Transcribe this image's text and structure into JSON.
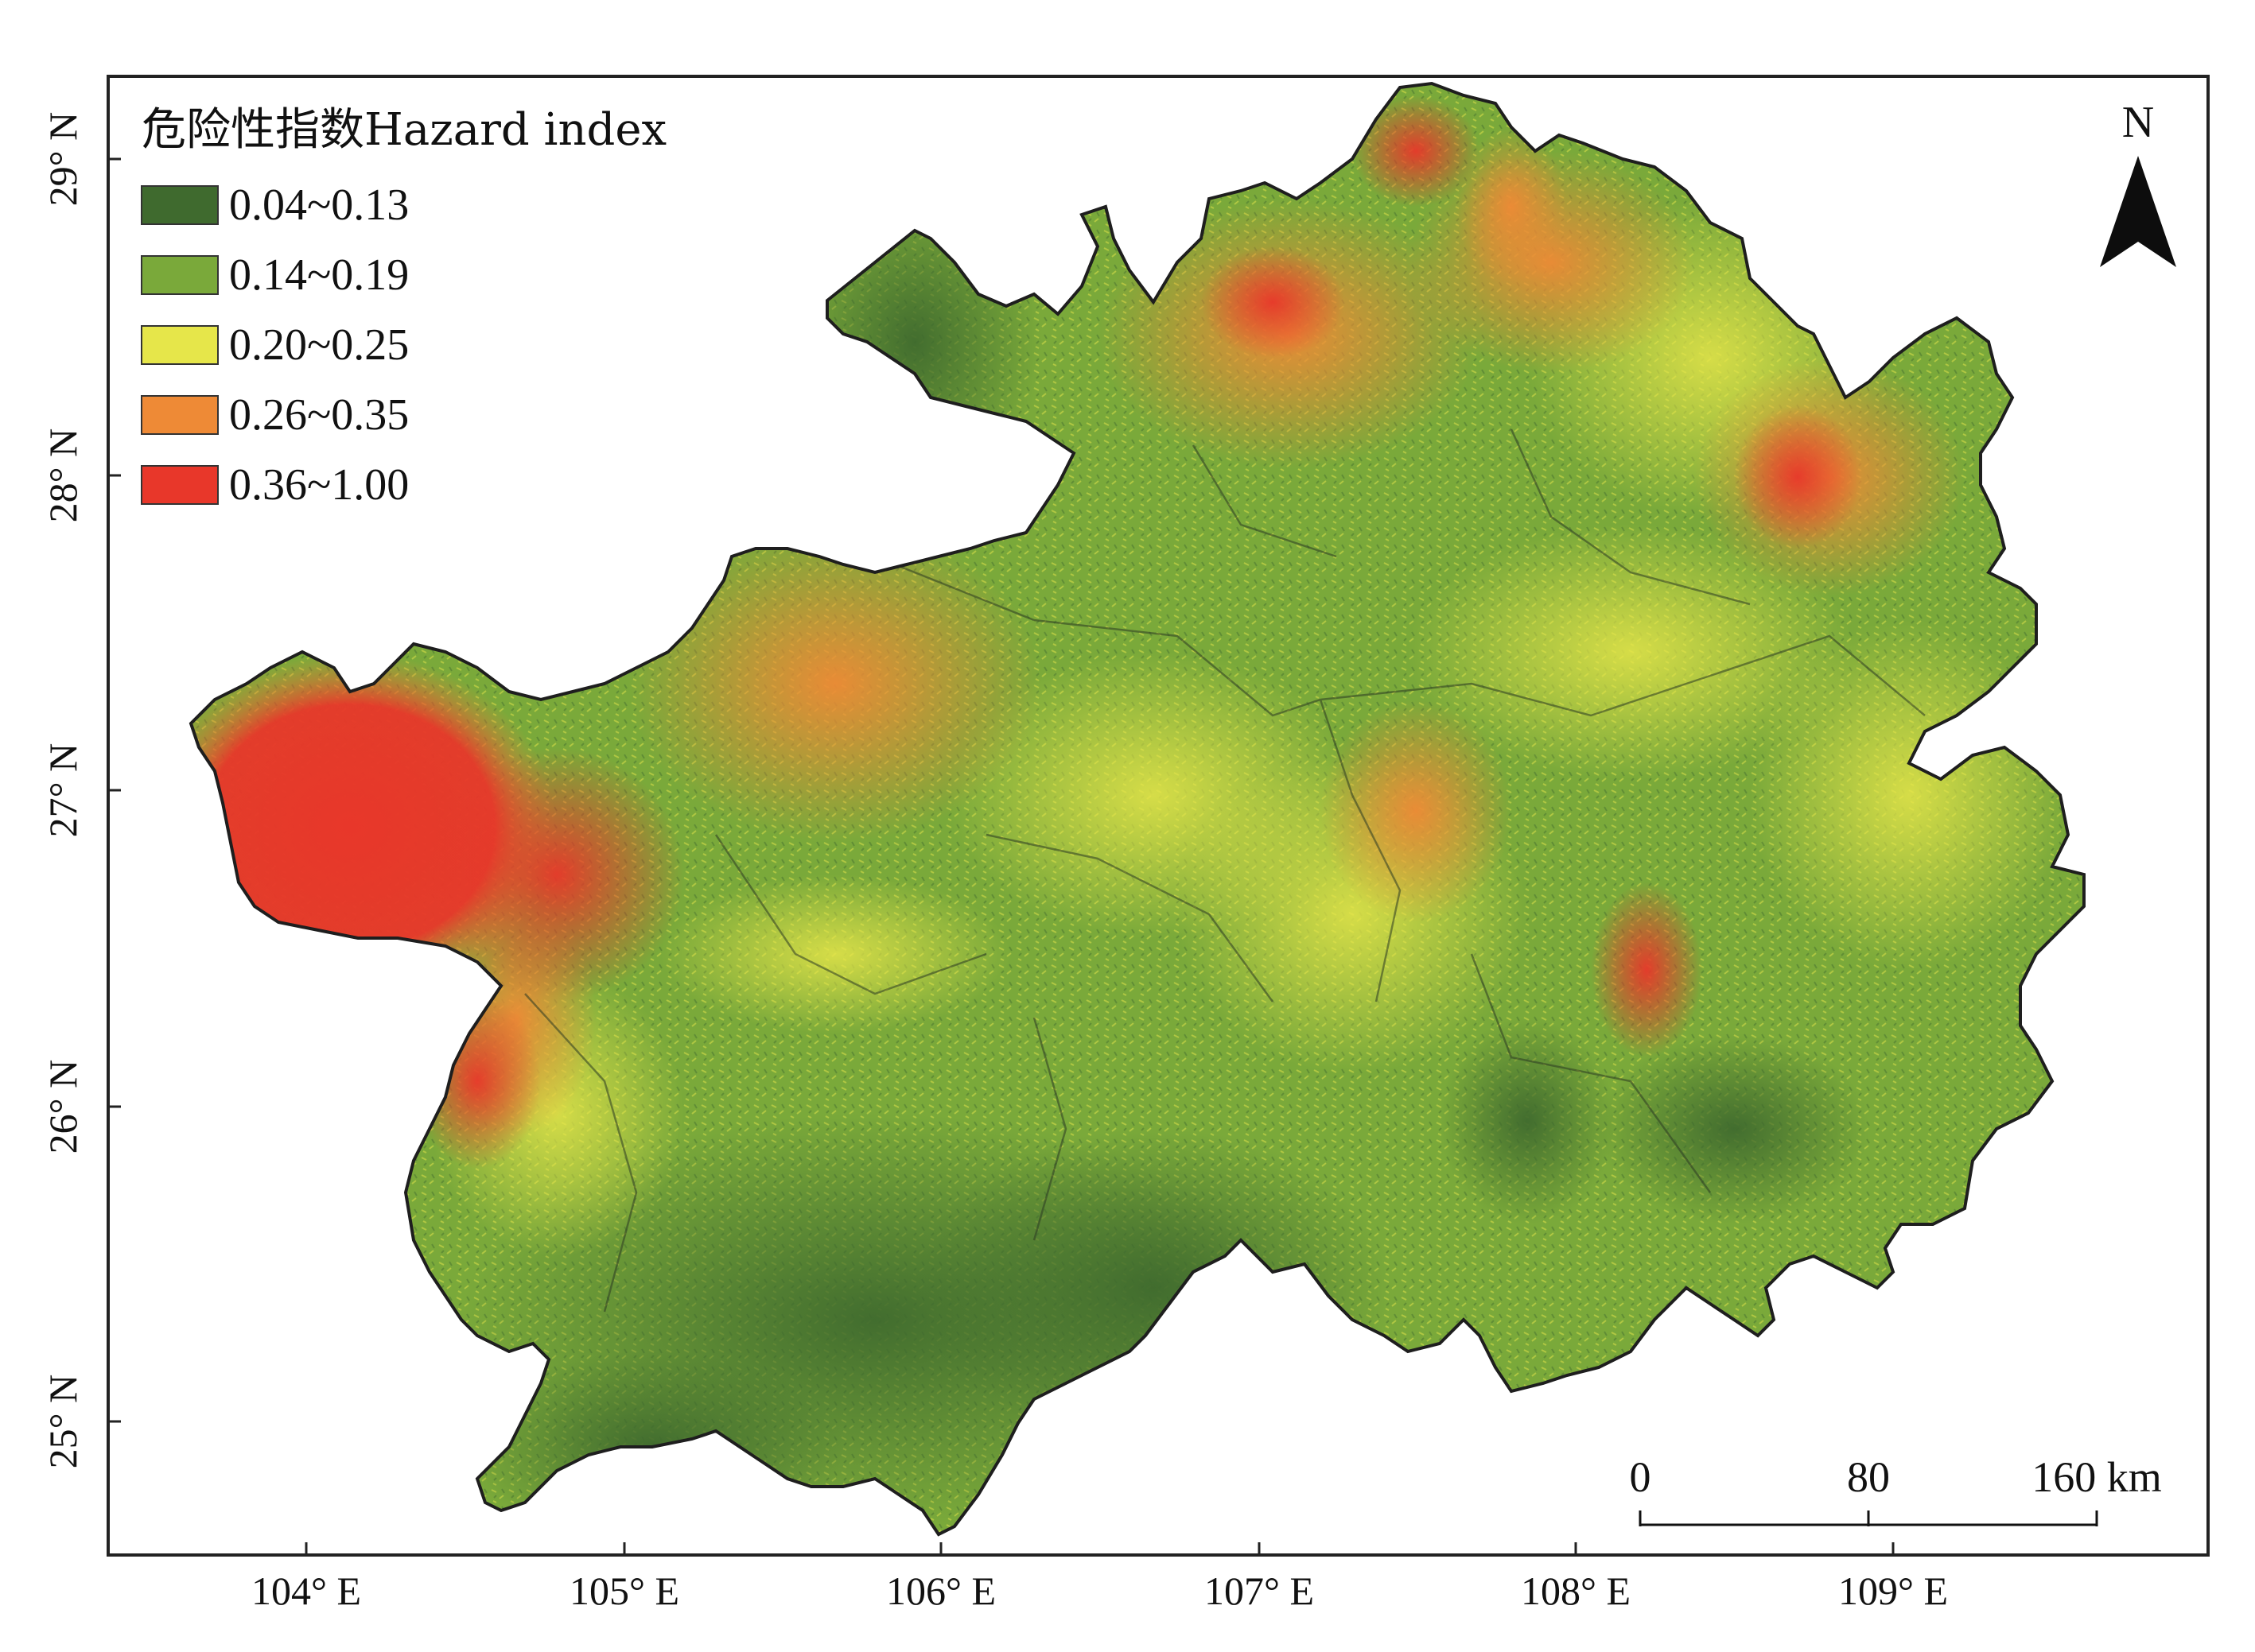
{
  "legend": {
    "title": "危险性指数Hazard index",
    "classes": [
      {
        "label": "0.04~0.13",
        "color": "#3f6a2e"
      },
      {
        "label": "0.14~0.19",
        "color": "#7aa93a"
      },
      {
        "label": "0.20~0.25",
        "color": "#e6e64a"
      },
      {
        "label": "0.26~0.35",
        "color": "#ee8a36"
      },
      {
        "label": "0.36~1.00",
        "color": "#e8372a"
      }
    ]
  },
  "axes": {
    "lon_ticks": [
      "104° E",
      "105° E",
      "106° E",
      "107° E",
      "108° E",
      "109° E"
    ],
    "lat_ticks": [
      "29° N",
      "28° N",
      "27° N",
      "26° N",
      "25° N"
    ]
  },
  "north_arrow": {
    "label": "N",
    "icon": "north-arrow-icon"
  },
  "scale_bar": {
    "labels": [
      "0",
      "80",
      "160 km"
    ]
  }
}
